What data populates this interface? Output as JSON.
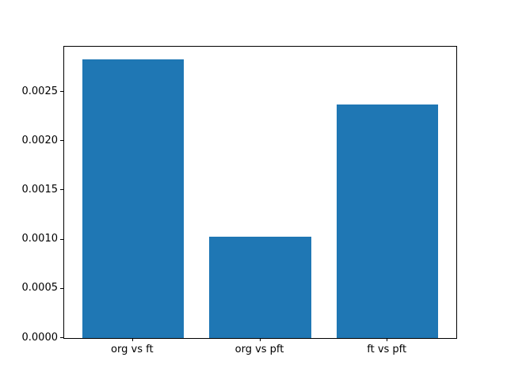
{
  "chart_data": {
    "type": "bar",
    "title": "",
    "xlabel": "",
    "ylabel": "",
    "categories": [
      "org vs ft",
      "org vs pft",
      "ft vs pft"
    ],
    "values": [
      0.00283,
      0.00103,
      0.00237
    ],
    "bar_color": "#1f77b4",
    "bar_width": 0.8,
    "xlim": [
      -0.54,
      2.54
    ],
    "ylim": [
      0,
      0.002958
    ],
    "yticks": [
      0.0,
      0.0005,
      0.001,
      0.0015,
      0.002,
      0.0025
    ],
    "ytick_labels": [
      "0.0000",
      "0.0005",
      "0.0010",
      "0.0015",
      "0.0020",
      "0.0025"
    ],
    "grid": false,
    "legend": "none",
    "background": "#ffffff",
    "spine_color": "#000000"
  }
}
